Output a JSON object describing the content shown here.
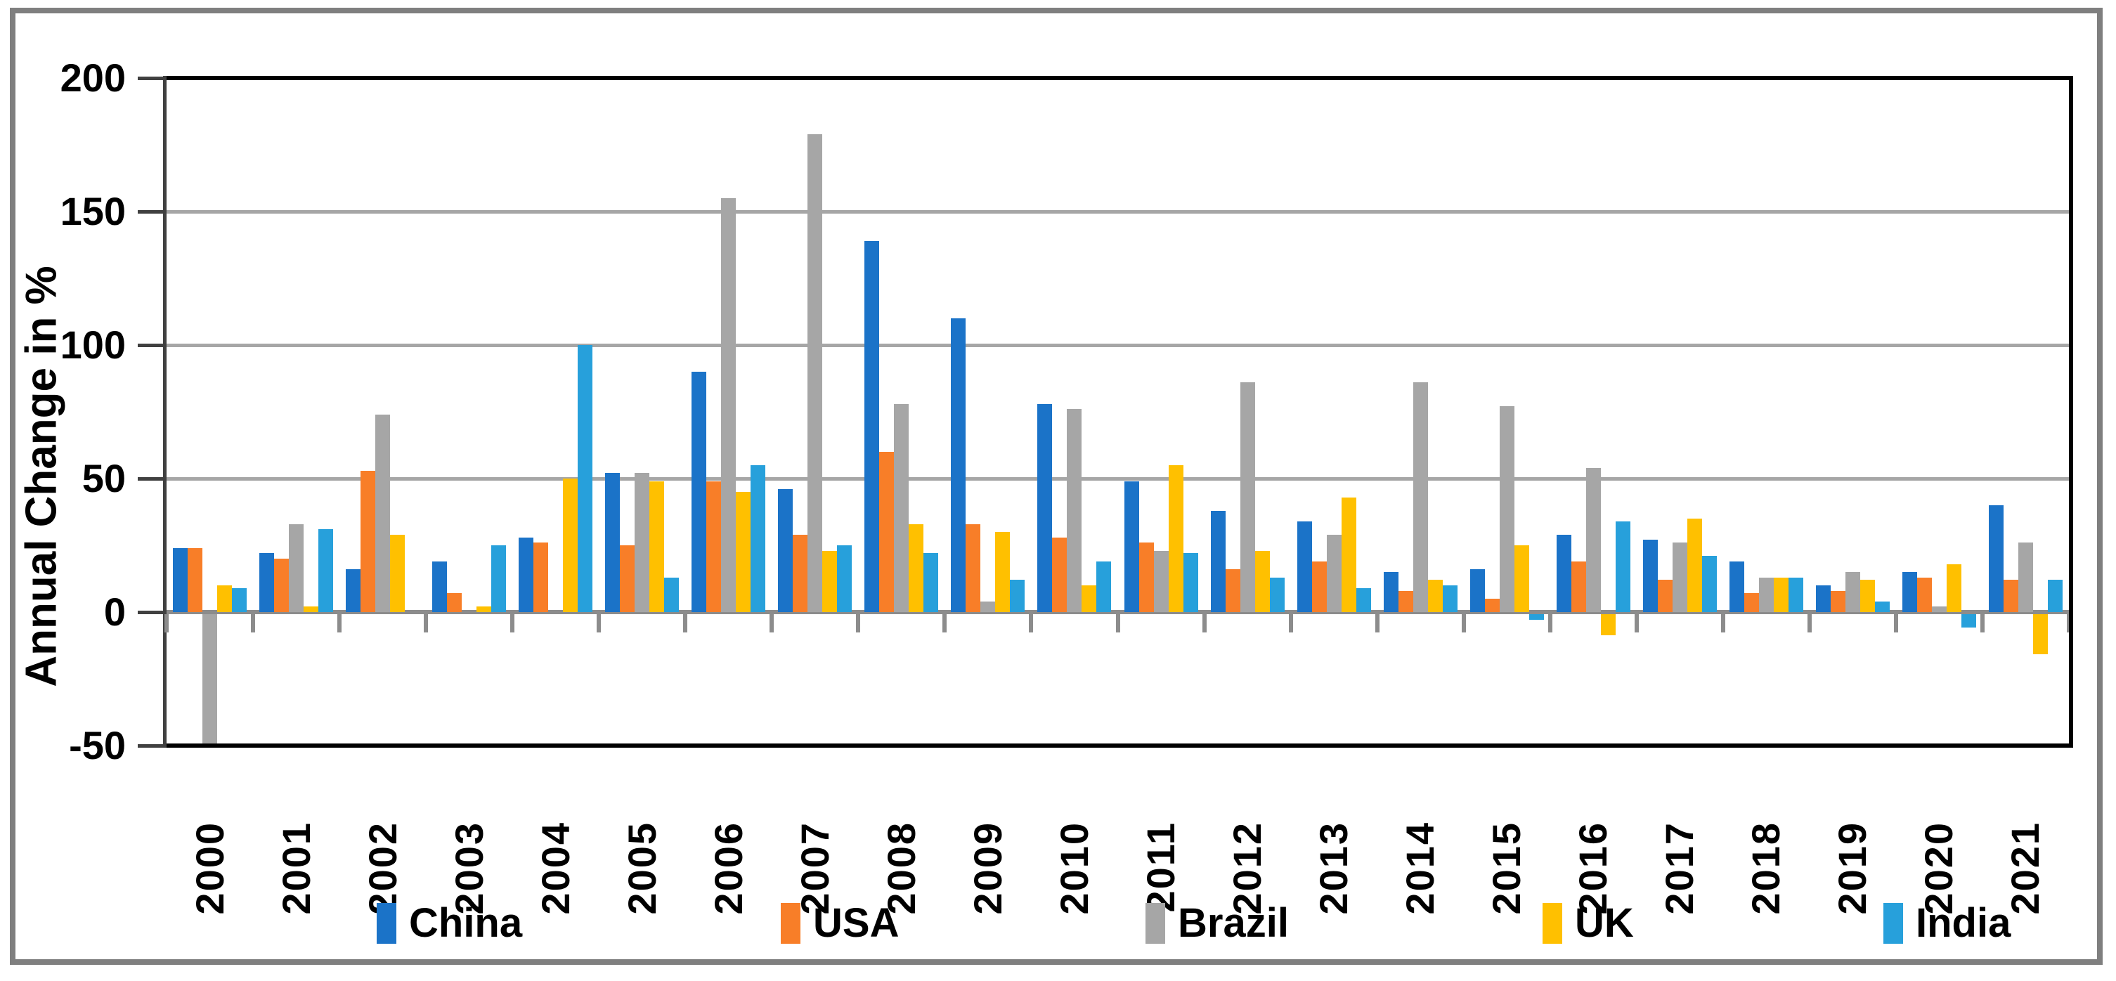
{
  "chart_data": {
    "type": "bar",
    "title": "",
    "ylabel": "Annual Change in %",
    "xlabel": "",
    "ylim": [
      -50,
      200
    ],
    "y_ticks": [
      200,
      150,
      100,
      50,
      0,
      -50
    ],
    "grid": true,
    "legend_position": "bottom",
    "categories": [
      "2000",
      "2001",
      "2002",
      "2003",
      "2004",
      "2005",
      "2006",
      "2007",
      "2008",
      "2009",
      "2010",
      "2011",
      "2012",
      "2013",
      "2014",
      "2015",
      "2016",
      "2017",
      "2018",
      "2019",
      "2020",
      "2021"
    ],
    "series": [
      {
        "name": "China",
        "color": "#1b73c8",
        "values": [
          24,
          22,
          16,
          19,
          28,
          52,
          90,
          46,
          139,
          110,
          78,
          49,
          38,
          34,
          15,
          16,
          29,
          27,
          19,
          10,
          15,
          40
        ]
      },
      {
        "name": "USA",
        "color": "#f87e28",
        "values": [
          24,
          20,
          53,
          7,
          26,
          25,
          49,
          29,
          60,
          33,
          28,
          26,
          16,
          19,
          8,
          5,
          19,
          12,
          7,
          8,
          13,
          12
        ]
      },
      {
        "name": "Brazil",
        "color": "#a6a6a6",
        "values": [
          -50,
          33,
          74,
          0,
          0,
          52,
          155,
          179,
          78,
          4,
          76,
          23,
          86,
          29,
          86,
          77,
          54,
          26,
          13,
          15,
          2,
          26
        ]
      },
      {
        "name": "UK",
        "color": "#ffc000",
        "values": [
          10,
          2,
          29,
          2,
          50,
          49,
          45,
          23,
          33,
          30,
          10,
          55,
          23,
          43,
          12,
          25,
          -8,
          35,
          13,
          12,
          18,
          -15
        ]
      },
      {
        "name": "India",
        "color": "#27a0db",
        "values": [
          9,
          31,
          0,
          25,
          100,
          13,
          55,
          25,
          22,
          12,
          19,
          22,
          13,
          9,
          10,
          -2,
          34,
          21,
          13,
          4,
          -5,
          12
        ]
      }
    ]
  },
  "frame": {
    "border_color": "#7f7f7f"
  },
  "axis_colors": {
    "gridline": "#a6a6a6",
    "zero_line": "#8c8c8c",
    "plot_border": "#000000",
    "axis_line": "#404040"
  }
}
